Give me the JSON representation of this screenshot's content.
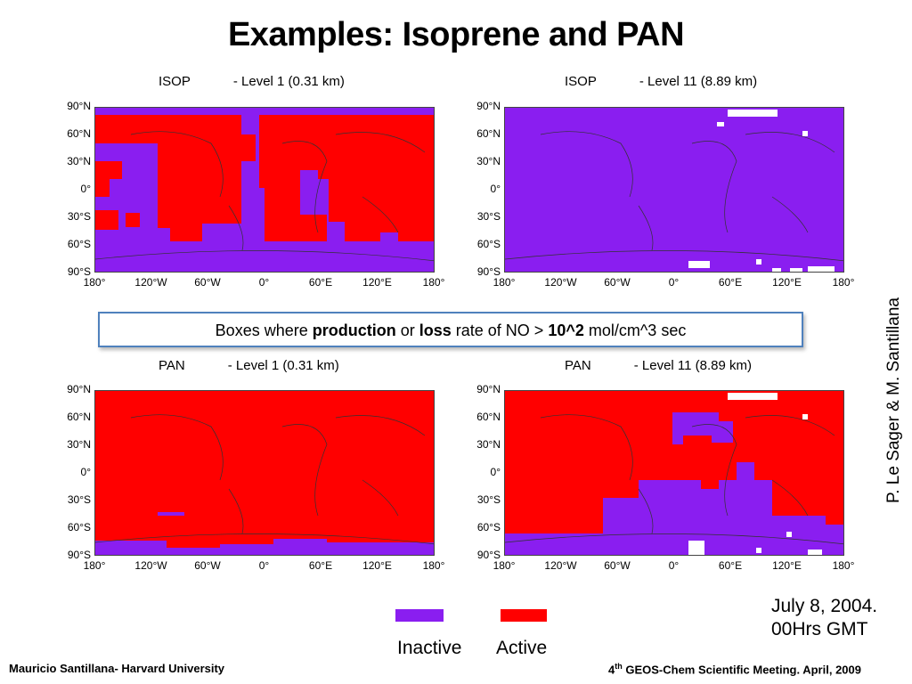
{
  "title": "Examples: Isoprene and PAN",
  "panels": [
    {
      "species": "ISOP",
      "level": "- Level 1 (0.31 km)"
    },
    {
      "species": "ISOP",
      "level": "- Level 11 (8.89 km)"
    },
    {
      "species": "PAN",
      "level": "- Level 1 (0.31 km)"
    },
    {
      "species": "PAN",
      "level": "- Level 11 (8.89 km)"
    }
  ],
  "lat_ticks": [
    "90°N",
    "60°N",
    "30°N",
    "0°",
    "30°S",
    "60°S",
    "90°S"
  ],
  "lon_ticks": [
    "180°",
    "120°W",
    "60°W",
    "0°",
    "60°E",
    "120°E",
    "180°"
  ],
  "note": {
    "pre": "Boxes where ",
    "b1": "production",
    "mid": " or ",
    "b2": "loss",
    "mid2": " rate of NO > ",
    "b3": "10^2",
    "post": " mol/cm^3 sec"
  },
  "credit": "P. Le Sager & M. Santillana",
  "date": {
    "line1": "July 8, 2004.",
    "line2": "00Hrs GMT"
  },
  "legend": {
    "inactive": "Inactive",
    "active": "Active"
  },
  "colors": {
    "inactive": "#8a1ef0",
    "active": "#ff0000",
    "box_border": "#4f81bd"
  },
  "footer": {
    "left": "Mauricio Santillana- Harvard University",
    "right_pre": "4",
    "right_sup": "th",
    "right_post": " GEOS-Chem Scientific Meeting. April, 2009"
  }
}
